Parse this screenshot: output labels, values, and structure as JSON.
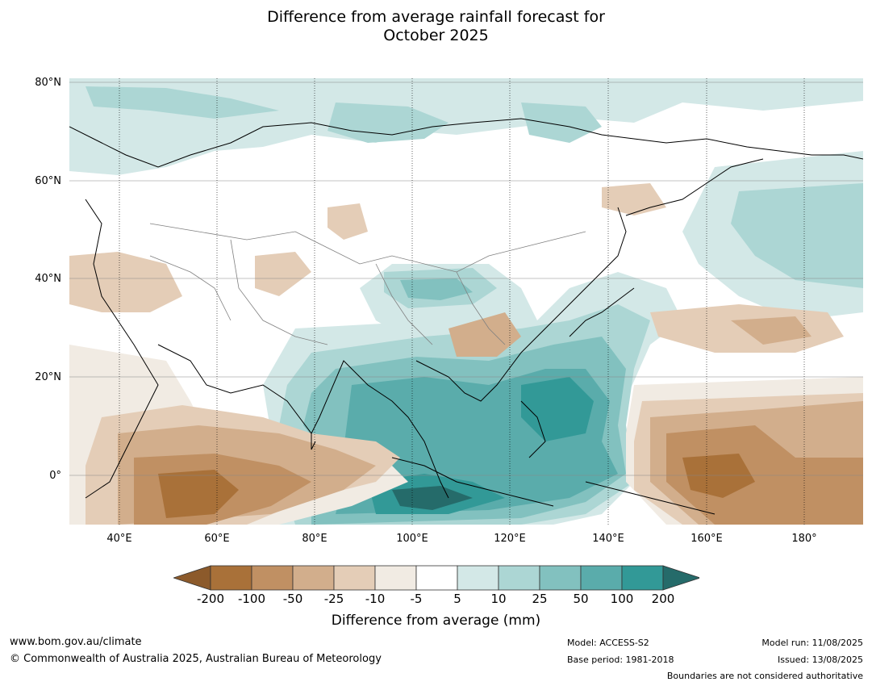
{
  "title_line1": "Difference from average rainfall forecast for",
  "title_line2": "October 2025",
  "map": {
    "lat_labels": [
      "80°N",
      "60°N",
      "40°N",
      "20°N",
      "0°"
    ],
    "lon_labels": [
      "40°E",
      "60°E",
      "80°E",
      "100°E",
      "120°E",
      "140°E",
      "160°E",
      "180°"
    ]
  },
  "colorbar": {
    "title": "Difference from average (mm)",
    "tick_labels": [
      "-200",
      "-100",
      "-50",
      "-25",
      "-10",
      "-5",
      "5",
      "10",
      "25",
      "50",
      "100",
      "200"
    ],
    "colors": [
      "#8c5a2b",
      "#a97139",
      "#c09063",
      "#d2ae8c",
      "#e4cdb7",
      "#f1ebe3",
      "#ffffff",
      "#d3e8e7",
      "#acd6d4",
      "#82c1bf",
      "#5aacab",
      "#329997",
      "#256b6a"
    ]
  },
  "footer": {
    "website": "www.bom.gov.au/climate",
    "copyright": "© Commonwealth of Australia 2025, Australian Bureau of Meteorology",
    "model": "Model: ACCESS-S2",
    "base_period": "Base period: 1981-2018",
    "model_run": "Model run: 11/08/2025",
    "issued": "Issued: 13/08/2025",
    "disclaimer": "Boundaries are not considered authoritative"
  }
}
